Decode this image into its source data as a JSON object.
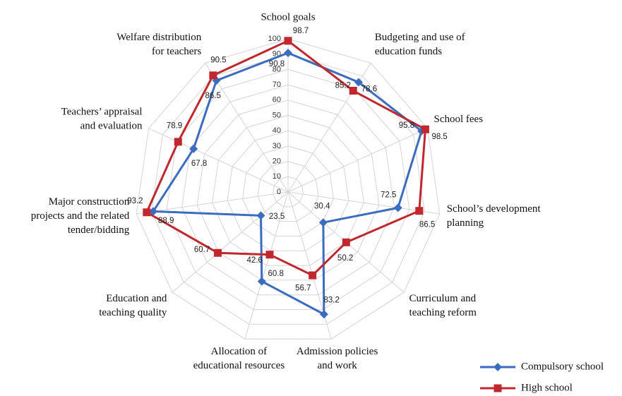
{
  "chart_data": {
    "type": "radar",
    "categories": [
      "School goals",
      "Budgeting and use of\neducation funds",
      "School fees",
      "School’s development\nplanning",
      "Curriculum and\nteaching reform",
      "Admission policies\nand work",
      "Allocation of\neducational resources",
      "Education  and\nteaching quality",
      "Major construction\nprojects and the related\ntender/bidding",
      "Teachers’ appraisal\nand evaluation",
      "Welfare distribution\nfor teachers"
    ],
    "series": [
      {
        "name": "Compulsory school",
        "color": "#3b6cc0",
        "marker": "diamond",
        "values": [
          90.8,
          85.2,
          95.8,
          72.5,
          30.4,
          83.2,
          60.8,
          23.5,
          88.9,
          67.8,
          86.5
        ]
      },
      {
        "name": "High school",
        "color": "#c0282d",
        "marker": "square",
        "values": [
          98.7,
          78.6,
          98.5,
          86.5,
          50.2,
          56.7,
          42.6,
          60.7,
          93.2,
          78.9,
          90.5
        ]
      }
    ],
    "rlim": [
      0,
      100
    ],
    "rticks": [
      0,
      10,
      20,
      30,
      40,
      50,
      60,
      70,
      80,
      90,
      100
    ],
    "grid": true,
    "legend": "lower right"
  }
}
